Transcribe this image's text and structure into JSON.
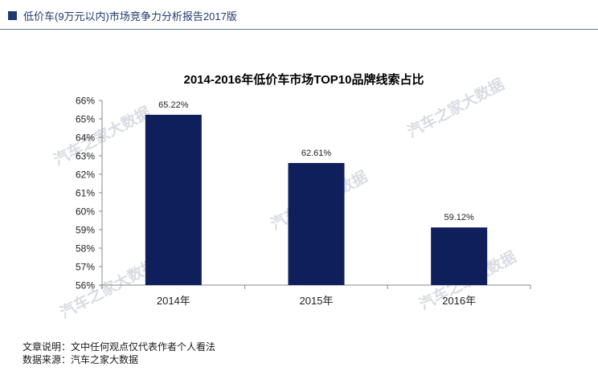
{
  "header": {
    "title": "低价车(9万元以内)市场竞争力分析报告2017版"
  },
  "watermark": "汽车之家大数据",
  "footer": {
    "note": "文章说明：文中任何观点仅代表作者个人看法",
    "source": "数据来源：汽车之家大数据"
  },
  "colors": {
    "bar": "#0f1f5c",
    "accent": "#1f3a6e"
  },
  "chart_data": {
    "type": "bar",
    "title": "2014-2016年低价车市场TOP10品牌线索占比",
    "categories": [
      "2014年",
      "2015年",
      "2016年"
    ],
    "values": [
      65.22,
      62.61,
      59.12
    ],
    "value_labels": [
      "65.22%",
      "62.61%",
      "59.12%"
    ],
    "ylim": [
      56,
      66
    ],
    "yticks": [
      "56%",
      "57%",
      "58%",
      "59%",
      "60%",
      "61%",
      "62%",
      "63%",
      "64%",
      "65%",
      "66%"
    ],
    "grid": false,
    "xlabel": "",
    "ylabel": ""
  }
}
